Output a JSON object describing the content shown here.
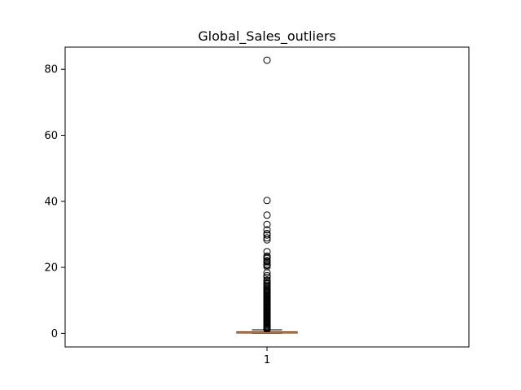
{
  "chart_data": {
    "type": "box",
    "title": "Global_Sales_outliers",
    "xlabel": "",
    "ylabel": "",
    "categories": [
      "1"
    ],
    "ylim": [
      -4.1,
      86.7
    ],
    "yticks": [
      0,
      20,
      40,
      60,
      80
    ],
    "ytick_labels": [
      "0",
      "20",
      "40",
      "60",
      "80"
    ],
    "grid": false,
    "box": {
      "whisker_low": 0.01,
      "q1": 0.06,
      "median": 0.17,
      "q3": 0.47,
      "whisker_high": 1.08
    },
    "outliers": [
      82.74,
      40.24,
      35.82,
      33.0,
      31.37,
      30.26,
      29.8,
      28.92,
      28.32,
      24.76,
      23.42,
      23.1,
      22.7,
      22.0,
      21.82,
      21.4,
      20.81,
      20.61,
      20.22,
      18.36,
      17.5,
      17.0,
      16.15,
      15.85,
      15.3,
      14.98,
      14.6,
      14.2,
      13.8,
      13.5,
      13.1,
      12.8,
      12.5,
      12.2,
      11.9,
      11.6,
      11.3,
      11.0,
      10.7,
      10.4,
      10.1,
      9.8,
      9.5,
      9.2,
      8.9,
      8.6,
      8.3,
      8.0,
      7.7,
      7.4,
      7.1,
      6.8,
      6.5,
      6.2,
      5.9,
      5.6,
      5.3,
      5.0,
      4.7,
      4.4,
      4.1,
      3.8,
      3.5,
      3.2,
      2.9,
      2.6,
      2.3,
      2.0,
      1.8,
      1.6,
      1.4,
      1.2
    ],
    "colors": {
      "box": "#000000",
      "median": "#ff7f0e",
      "outlier": "#000000",
      "axes": "#000000",
      "background": "#ffffff"
    }
  }
}
